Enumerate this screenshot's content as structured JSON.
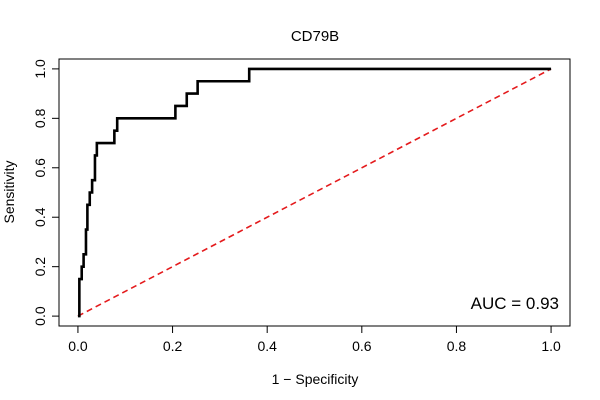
{
  "chart_data": {
    "type": "line",
    "title": "CD79B",
    "xlabel": "1 − Specificity",
    "ylabel": "Sensitivity",
    "xlim": [
      -0.04,
      1.04
    ],
    "ylim": [
      -0.04,
      1.04
    ],
    "x_ticks": [
      0.0,
      0.2,
      0.4,
      0.6,
      0.8,
      1.0
    ],
    "x_tick_labels": [
      "0.0",
      "0.2",
      "0.4",
      "0.6",
      "0.8",
      "1.0"
    ],
    "y_ticks": [
      0.0,
      0.2,
      0.4,
      0.6,
      0.8,
      1.0
    ],
    "y_tick_labels": [
      "0.0",
      "0.2",
      "0.4",
      "0.6",
      "0.8",
      "1.0"
    ],
    "annotation": "AUC = 0.93",
    "colors": {
      "roc": "#000000",
      "reference": "#e41a1c",
      "frame": "#000000"
    },
    "series": [
      {
        "name": "ROC",
        "x": [
          0.0,
          0.003,
          0.003,
          0.008,
          0.008,
          0.012,
          0.012,
          0.017,
          0.017,
          0.02,
          0.02,
          0.025,
          0.025,
          0.03,
          0.03,
          0.036,
          0.036,
          0.04,
          0.04,
          0.077,
          0.077,
          0.083,
          0.083,
          0.206,
          0.206,
          0.23,
          0.23,
          0.253,
          0.253,
          0.362,
          0.362,
          1.0
        ],
        "y": [
          0.0,
          0.0,
          0.15,
          0.15,
          0.2,
          0.2,
          0.25,
          0.25,
          0.35,
          0.35,
          0.45,
          0.45,
          0.5,
          0.5,
          0.55,
          0.55,
          0.65,
          0.65,
          0.7,
          0.7,
          0.75,
          0.75,
          0.8,
          0.8,
          0.85,
          0.85,
          0.9,
          0.9,
          0.95,
          0.95,
          1.0,
          1.0
        ]
      },
      {
        "name": "reference",
        "x": [
          0,
          1
        ],
        "y": [
          0,
          1
        ]
      }
    ]
  }
}
